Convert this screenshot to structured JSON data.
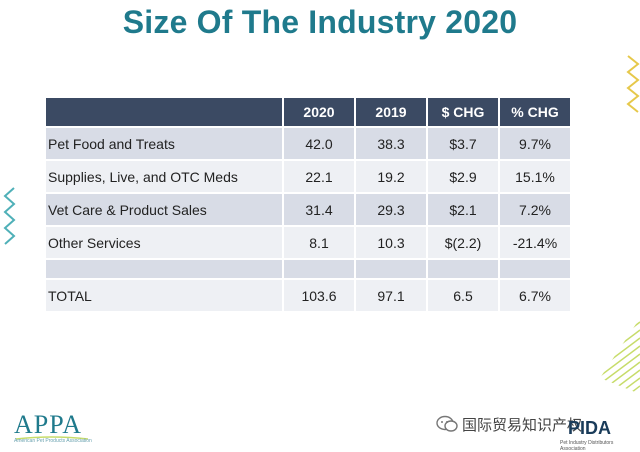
{
  "title": "Size Of The Industry 2020",
  "table": {
    "headers": [
      "",
      "2020",
      "2019",
      "$ CHG",
      "% CHG"
    ],
    "rows": [
      [
        "Pet Food and Treats",
        "42.0",
        "38.3",
        "$3.7",
        "9.7%"
      ],
      [
        "Supplies, Live, and OTC Meds",
        "22.1",
        "19.2",
        "$2.9",
        "15.1%"
      ],
      [
        "Vet Care & Product Sales",
        "31.4",
        "29.3",
        "$2.1",
        "7.2%"
      ],
      [
        "Other Services",
        "8.1",
        "10.3",
        "$(2.2)",
        "-21.4%"
      ],
      [
        "",
        "",
        "",
        "",
        ""
      ],
      [
        "TOTAL",
        "103.6",
        "97.1",
        "6.5",
        "6.7%"
      ]
    ]
  },
  "logos": {
    "appa": "APPA",
    "appa_sub": "American Pet Products Association",
    "pida": "PIDA",
    "pida_sub": "Pet Industry Distributors Association",
    "watermark": "国际贸易知识产权"
  },
  "colors": {
    "title": "#1f7a8c",
    "header_bg": "#3b4a63",
    "row_dark": "#d8dce6",
    "row_light": "#eef0f4",
    "accent_green": "#c7dc6a",
    "accent_yellow": "#e6c84a",
    "accent_teal": "#4fb0b8"
  }
}
